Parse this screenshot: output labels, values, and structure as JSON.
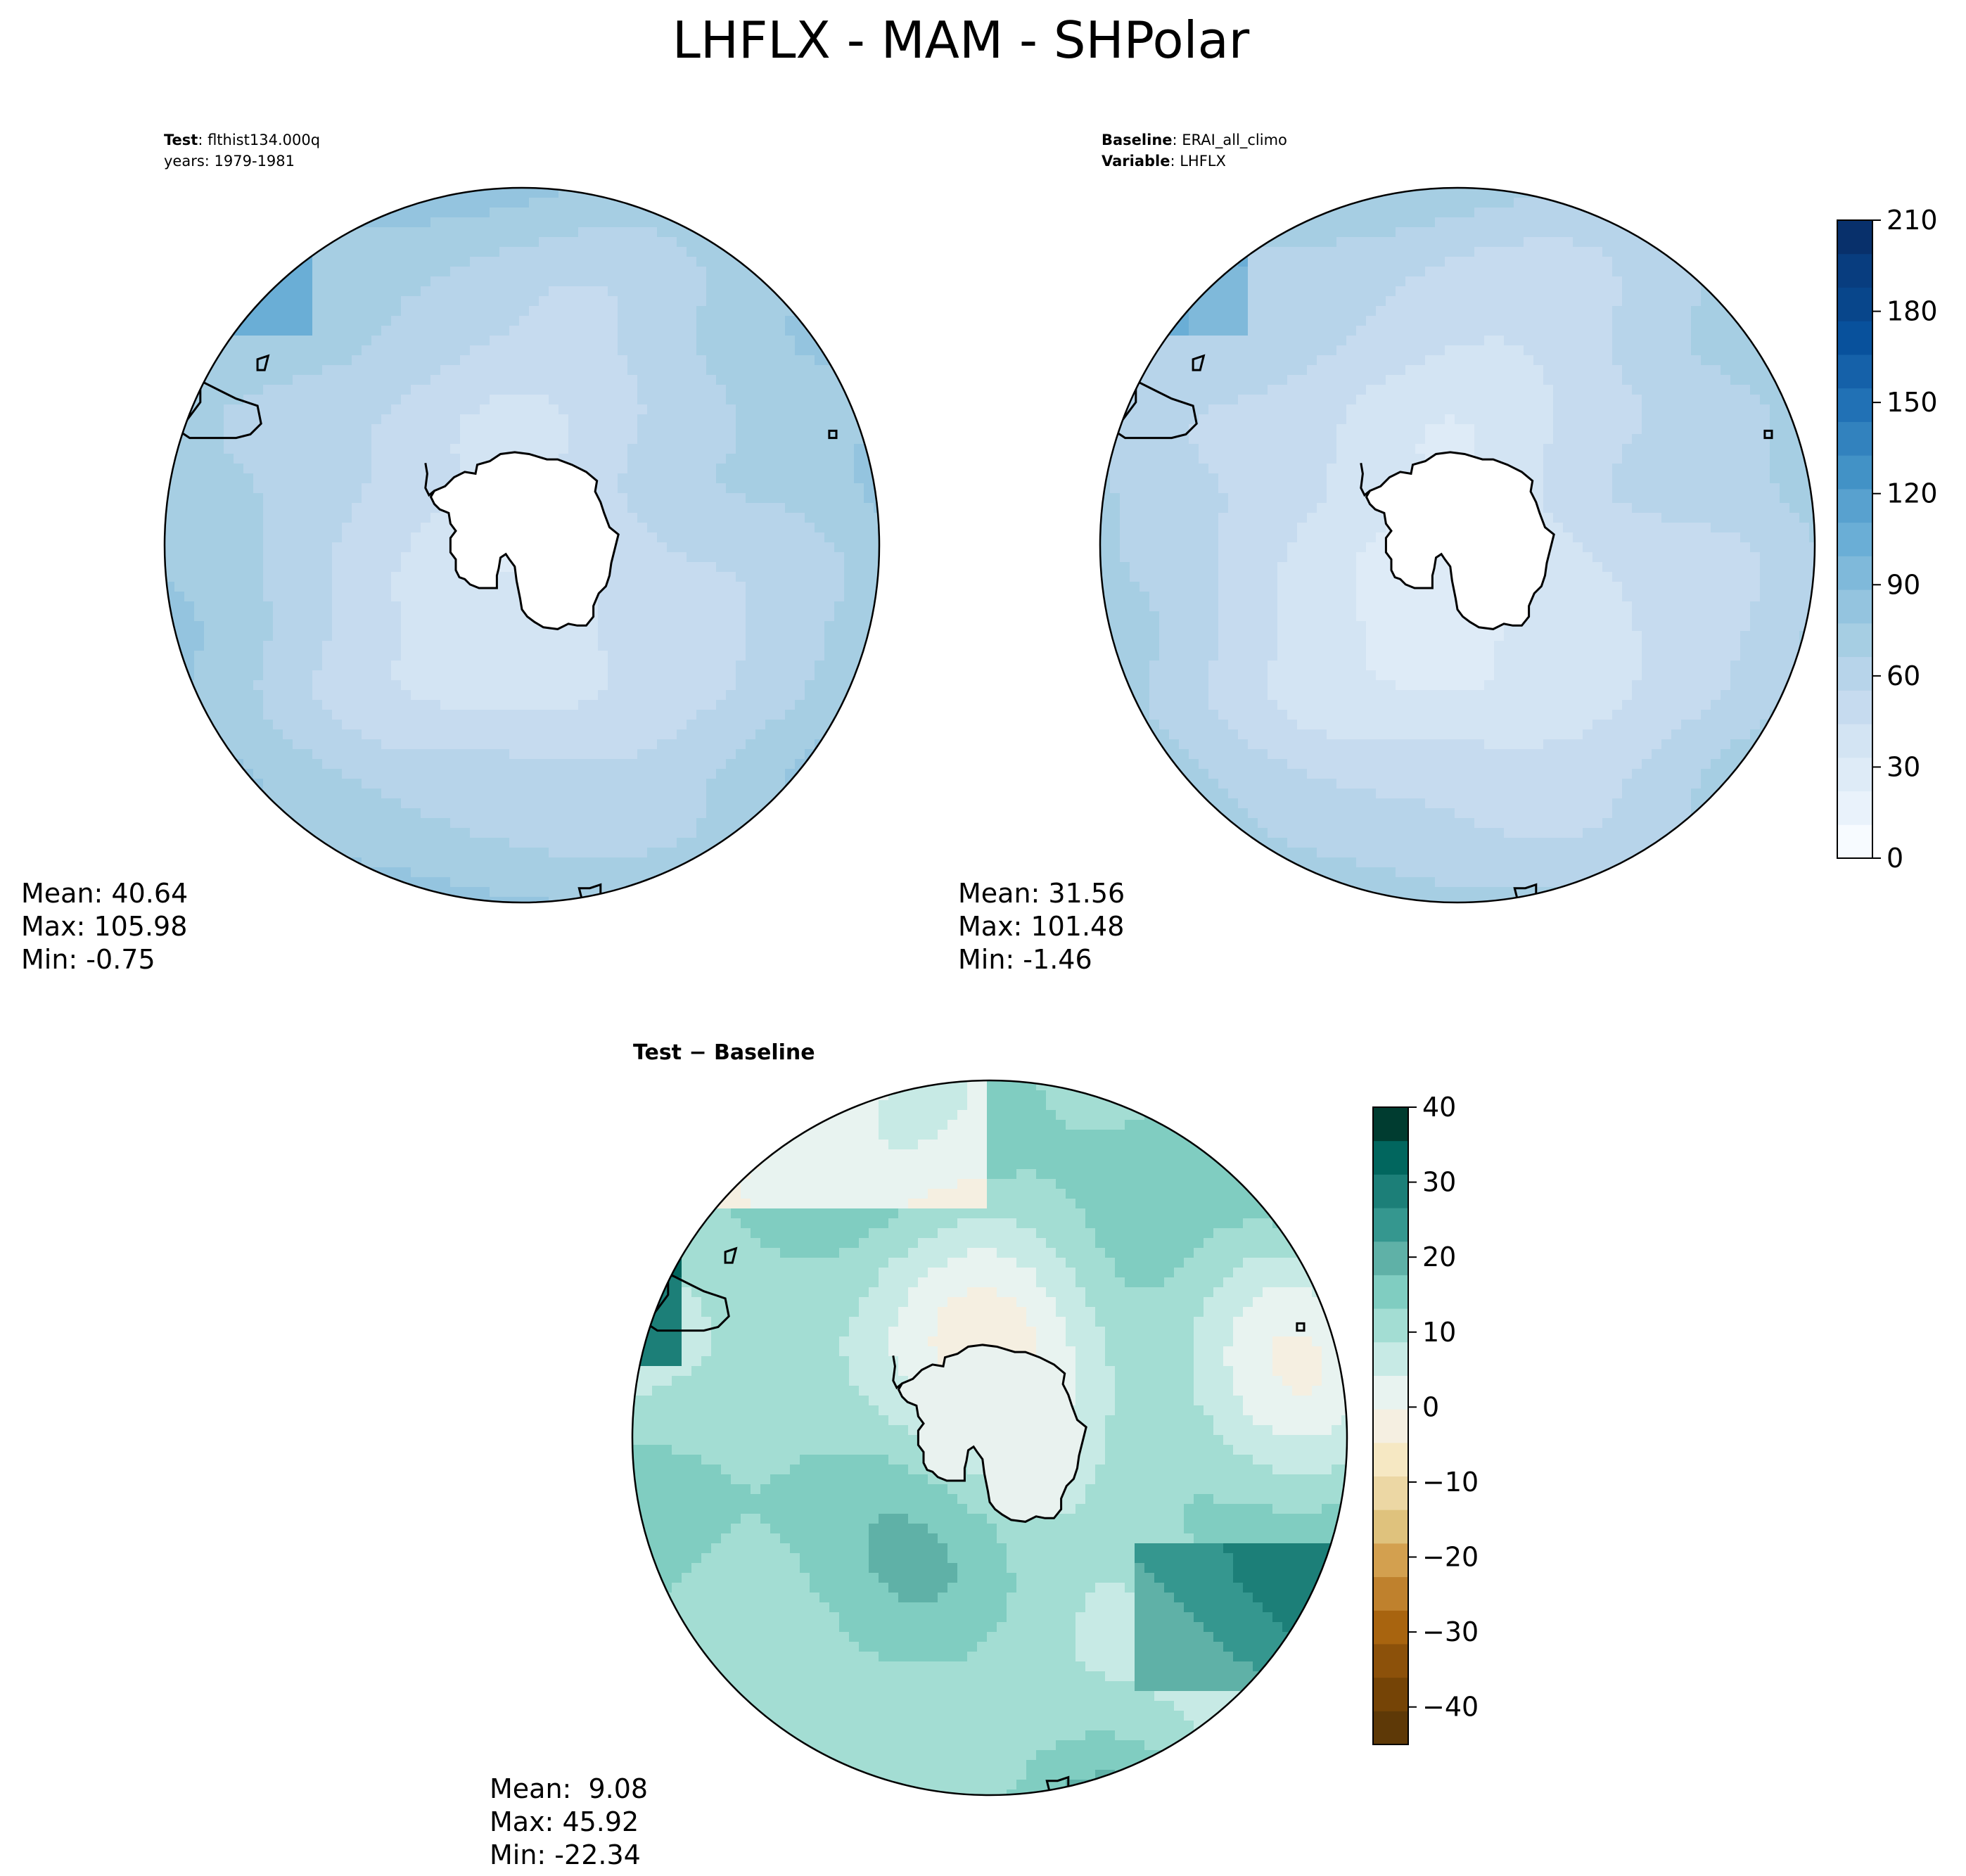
{
  "title": "LHFLX - MAM - SHPolar",
  "panels": [
    {
      "id": "test",
      "header_lines": [
        {
          "bold": "Test",
          "rest": ": flthist134.000q"
        },
        {
          "bold": "",
          "rest": "years: 1979-1981"
        }
      ],
      "stats": {
        "mean_label": "Mean: 40.64",
        "max_label": "Max: 105.98",
        "min_label": "Min: -0.75"
      },
      "stats_values": {
        "mean": 40.64,
        "max": 105.98,
        "min": -0.75
      }
    },
    {
      "id": "baseline",
      "header_lines": [
        {
          "bold": "Baseline",
          "rest": ": ERAI_all_climo"
        },
        {
          "bold": "Variable",
          "rest": ": LHFLX"
        }
      ],
      "stats": {
        "mean_label": "Mean: 31.56",
        "max_label": "Max: 101.48",
        "min_label": "Min: -1.46"
      },
      "stats_values": {
        "mean": 31.56,
        "max": 101.48,
        "min": -1.46
      }
    },
    {
      "id": "diff",
      "header_lines": [
        {
          "bold": "Test − Baseline",
          "rest": ""
        }
      ],
      "stats": {
        "mean_label": "Mean:  9.08",
        "max_label": "Max: 45.92",
        "min_label": "Min: -22.34"
      },
      "stats_values": {
        "mean": 9.08,
        "max": 45.92,
        "min": -22.34
      }
    }
  ],
  "colorbars": {
    "main": {
      "range": [
        0,
        210
      ],
      "tick_values": [
        0,
        30,
        60,
        90,
        120,
        150,
        180,
        210
      ],
      "tick_labels": [
        "0",
        "30",
        "60",
        "90",
        "120",
        "150",
        "180",
        "210"
      ],
      "colors": [
        "#f7fbff",
        "#e9f2fb",
        "#deebf7",
        "#d3e4f3",
        "#c6dbef",
        "#b7d4ea",
        "#a6cee3",
        "#94c4df",
        "#7fb9da",
        "#6aaed6",
        "#58a1cf",
        "#4292c6",
        "#3282be",
        "#2171b5",
        "#1561a9",
        "#08519c",
        "#08468b",
        "#083d7f",
        "#08306b"
      ]
    },
    "diff": {
      "range": [
        -45,
        40
      ],
      "tick_values": [
        -40,
        -30,
        -20,
        -10,
        0,
        10,
        20,
        30,
        40
      ],
      "tick_labels": [
        "−40",
        "−30",
        "−20",
        "−10",
        "0",
        "10",
        "20",
        "30",
        "40"
      ],
      "colors": [
        "#5e3907",
        "#754406",
        "#8c510a",
        "#a8640f",
        "#bf812d",
        "#d3a04f",
        "#dfc27d",
        "#ecd7a4",
        "#f6e8c3",
        "#f5efe1",
        "#e8f3f0",
        "#c7eae5",
        "#a3ddd3",
        "#80cdc1",
        "#5fb1a7",
        "#35978f",
        "#1c7f78",
        "#01665e",
        "#003c30"
      ]
    }
  },
  "colors": {
    "land_fill": "#ffffff",
    "outline": "#000000"
  }
}
